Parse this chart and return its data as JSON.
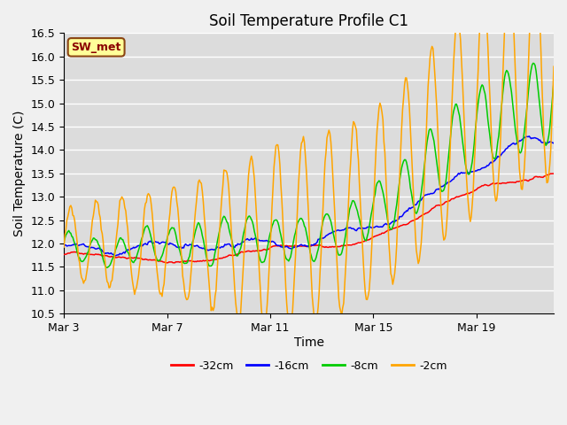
{
  "title": "Soil Temperature Profile C1",
  "xlabel": "Time",
  "ylabel": "Soil Temperature (C)",
  "ylim": [
    10.5,
    16.5
  ],
  "yticks": [
    10.5,
    11.0,
    11.5,
    12.0,
    12.5,
    13.0,
    13.5,
    14.0,
    14.5,
    15.0,
    15.5,
    16.0,
    16.5
  ],
  "xtick_labels": [
    "Mar 3",
    "Mar 7",
    "Mar 11",
    "Mar 15",
    "Mar 19"
  ],
  "xtick_pos": [
    0,
    4,
    8,
    12,
    16
  ],
  "legend_label": "SW_met",
  "legend_box_color": "#FFFF99",
  "legend_text_color": "#8B0000",
  "series_labels": [
    "-32cm",
    "-16cm",
    "-8cm",
    "-2cm"
  ],
  "series_colors": [
    "#FF0000",
    "#0000FF",
    "#00CC00",
    "#FFA500"
  ],
  "background_color": "#DCDCDC",
  "grid_color": "#FFFFFF",
  "fig_bg_color": "#F0F0F0"
}
